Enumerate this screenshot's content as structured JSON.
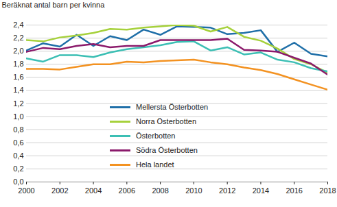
{
  "chart_data": {
    "type": "line",
    "y_label": "Beräknat antal barn per kvinna",
    "x": [
      2000,
      2001,
      2002,
      2003,
      2004,
      2005,
      2006,
      2007,
      2008,
      2009,
      2010,
      2011,
      2012,
      2013,
      2014,
      2015,
      2016,
      2017,
      2018
    ],
    "series": [
      {
        "name": "Mellersta Österbotten",
        "color": "#1f6fa8",
        "values": [
          2.01,
          2.12,
          2.07,
          2.25,
          2.08,
          2.23,
          2.17,
          2.33,
          2.25,
          2.38,
          2.37,
          2.36,
          2.26,
          2.28,
          2.32,
          1.99,
          2.13,
          1.96,
          1.92
        ]
      },
      {
        "name": "Norra Österbotten",
        "color": "#a6d13c",
        "values": [
          2.17,
          2.15,
          2.21,
          2.24,
          2.28,
          2.34,
          2.33,
          2.36,
          2.38,
          2.4,
          2.39,
          2.3,
          2.37,
          2.22,
          2.16,
          2.04,
          1.88,
          1.8,
          1.67
        ]
      },
      {
        "name": "Österbotten",
        "color": "#3cbfb4",
        "values": [
          1.89,
          1.84,
          1.94,
          1.94,
          1.91,
          1.98,
          2.03,
          2.06,
          2.09,
          2.14,
          2.15,
          2.01,
          2.06,
          1.95,
          1.98,
          1.87,
          1.83,
          1.74,
          1.69
        ]
      },
      {
        "name": "Södra Österbotten",
        "color": "#8b1a6b",
        "values": [
          1.99,
          2.05,
          2.03,
          2.08,
          2.11,
          2.06,
          2.08,
          2.08,
          2.17,
          2.17,
          2.17,
          2.17,
          2.19,
          2.02,
          2.01,
          1.99,
          1.9,
          1.81,
          1.64
        ]
      },
      {
        "name": "Hela landet",
        "color": "#f39221",
        "values": [
          1.73,
          1.73,
          1.72,
          1.76,
          1.8,
          1.8,
          1.84,
          1.83,
          1.85,
          1.86,
          1.87,
          1.83,
          1.8,
          1.75,
          1.71,
          1.65,
          1.57,
          1.49,
          1.41
        ]
      }
    ],
    "xlim": [
      2000,
      2018
    ],
    "xticks": [
      2000,
      2002,
      2004,
      2006,
      2008,
      2010,
      2012,
      2014,
      2016,
      2018
    ],
    "ylim": [
      0,
      2.4
    ],
    "yticks": [
      {
        "value": 0,
        "label": "0,0"
      },
      {
        "value": 0.2,
        "label": "0,2"
      },
      {
        "value": 0.4,
        "label": "0,4"
      },
      {
        "value": 0.6,
        "label": "0,6"
      },
      {
        "value": 0.8,
        "label": "0,8"
      },
      {
        "value": 1.0,
        "label": "1,0"
      },
      {
        "value": 1.2,
        "label": "1,2"
      },
      {
        "value": 1.4,
        "label": "1,4"
      },
      {
        "value": 1.6,
        "label": "1,6"
      },
      {
        "value": 1.8,
        "label": "1,8"
      },
      {
        "value": 2.0,
        "label": "2,0"
      },
      {
        "value": 2.2,
        "label": "2,2"
      },
      {
        "value": 2.4,
        "label": "2,4"
      }
    ],
    "grid": true,
    "legend": "lower left"
  }
}
